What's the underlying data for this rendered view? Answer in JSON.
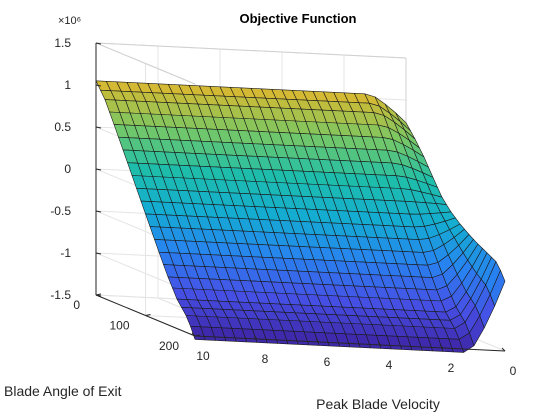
{
  "chart_data": {
    "type": "surface",
    "title": "Objective Function",
    "x_label": "Peak Blade Velocity",
    "y_label": "Blade Angle of Exit",
    "z_label": "",
    "z_multiplier": "×10⁶",
    "x_ticks": [
      "10",
      "8",
      "6",
      "4",
      "2",
      "0"
    ],
    "y_ticks": [
      "0",
      "100",
      "200"
    ],
    "z_ticks": [
      "1.5",
      "1",
      "0.5",
      "0",
      "-0.5",
      "-1",
      "-1.5"
    ],
    "x_range": [
      0,
      10
    ],
    "y_range": [
      0,
      200
    ],
    "z_range": [
      -1.5,
      1.5
    ],
    "z_unit_scale": 1000000,
    "colormap": "parula",
    "grid": true,
    "surface_rows_z_at_low_velocity": [
      1.05,
      0.87,
      0.62,
      0.36,
      0.1,
      -0.16,
      -0.42,
      -0.68,
      -0.93,
      -1.15,
      -1.3,
      -1.42
    ],
    "surface_rows_z_at_high_velocity": [
      0.73,
      0.58,
      0.41,
      0.21,
      0.02,
      -0.11,
      -0.21,
      -0.29,
      -0.36,
      -0.42,
      -0.48,
      -0.55
    ],
    "surface_rows_z_at_zero_angle": [
      1.05,
      0.87,
      0.62,
      0.36,
      0.1,
      -0.16,
      -0.42,
      -0.68,
      -0.93,
      -1.15,
      -1.3,
      -1.42
    ]
  }
}
